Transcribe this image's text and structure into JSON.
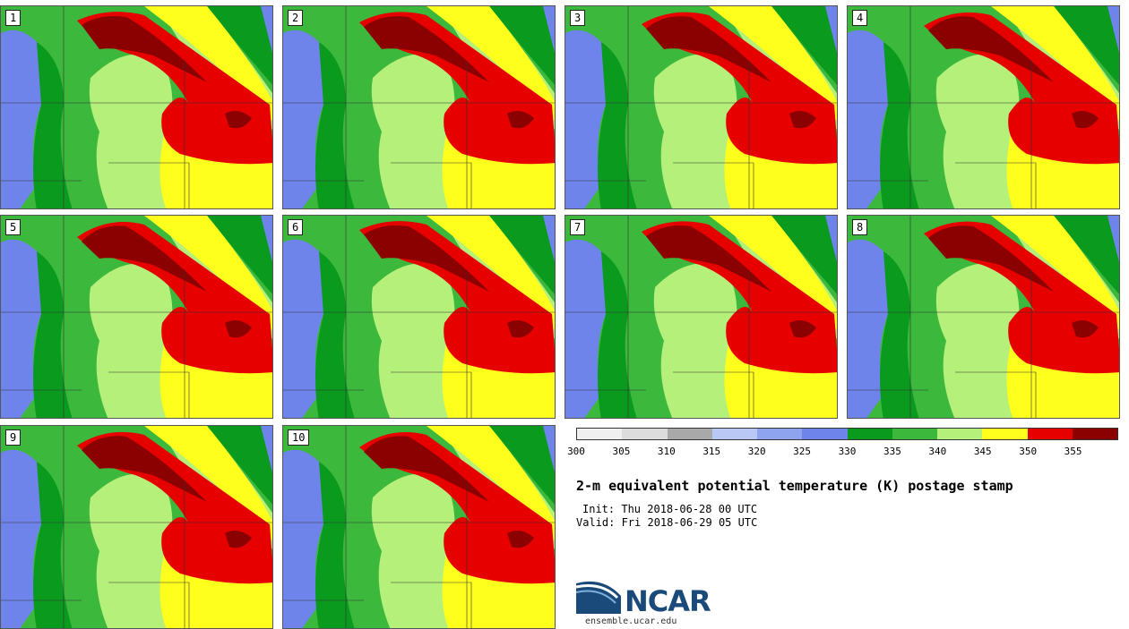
{
  "panels": [
    {
      "label": "1"
    },
    {
      "label": "2"
    },
    {
      "label": "3"
    },
    {
      "label": "4"
    },
    {
      "label": "5"
    },
    {
      "label": "6"
    },
    {
      "label": "7"
    },
    {
      "label": "8"
    },
    {
      "label": "9"
    },
    {
      "label": "10"
    }
  ],
  "colorbar": {
    "colors": [
      "#f0f0f0",
      "#dcdcdc",
      "#a9a9a9",
      "#b9c8f5",
      "#8ea4ee",
      "#6f84ea",
      "#0a9a1e",
      "#3cb83c",
      "#b4f07a",
      "#ffff1e",
      "#e60000",
      "#8b0000"
    ],
    "tick_labels": [
      "300",
      "305",
      "310",
      "315",
      "320",
      "325",
      "330",
      "335",
      "340",
      "345",
      "350",
      "355"
    ]
  },
  "title": "2-m equivalent potential temperature (K) postage stamp",
  "init": "Init: Thu 2018-06-28 00 UTC",
  "valid": "Valid: Fri 2018-06-29 05 UTC",
  "logo_text": "NCAR",
  "site": "ensemble.ucar.edu"
}
